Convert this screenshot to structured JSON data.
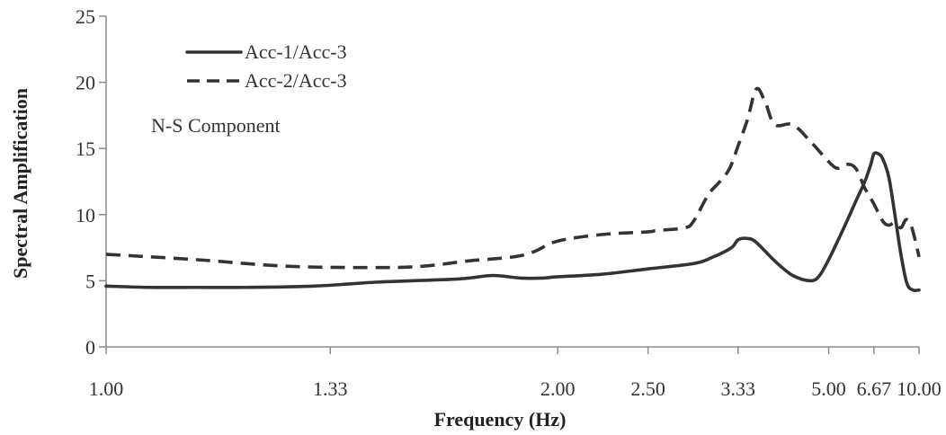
{
  "chart_data": {
    "type": "line",
    "xlabel": "Frequency (Hz)",
    "ylabel": "Spectral Amplification",
    "x_scale": "reciprocal",
    "xlim": [
      1.0,
      10.0
    ],
    "ylim": [
      0,
      25
    ],
    "xticks": [
      "1.00",
      "1.33",
      "2.00",
      "2.50",
      "3.33",
      "5.00",
      "6.67",
      "10.00"
    ],
    "yticks": [
      "0",
      "5",
      "10",
      "15",
      "20",
      "25"
    ],
    "grid": false,
    "legend_position": "top-left",
    "annotation": "N-S Component",
    "series": [
      {
        "name": "Acc-1/Acc-3",
        "style": "solid",
        "color": "#333333",
        "x": [
          1.0,
          1.05,
          1.11,
          1.18,
          1.3,
          1.43,
          1.61,
          1.67,
          1.75,
          1.85,
          1.93,
          2.0,
          2.22,
          2.5,
          2.86,
          3.05,
          3.25,
          3.33,
          3.45,
          3.57,
          3.85,
          4.17,
          4.55,
          4.76,
          5.0,
          5.26,
          5.56,
          5.88,
          6.25,
          6.52,
          6.67,
          6.9,
          7.14,
          7.5,
          7.89,
          8.33,
          8.82,
          9.38,
          10.0
        ],
        "y": [
          4.6,
          4.5,
          4.5,
          4.5,
          4.6,
          4.9,
          5.1,
          5.2,
          5.4,
          5.2,
          5.2,
          5.3,
          5.5,
          5.9,
          6.3,
          6.8,
          7.5,
          8.1,
          8.2,
          7.9,
          6.5,
          5.4,
          5.0,
          5.4,
          6.6,
          8.0,
          9.5,
          11.0,
          12.5,
          13.8,
          14.6,
          14.6,
          14.2,
          12.8,
          10.0,
          7.0,
          4.8,
          4.3,
          4.3
        ]
      },
      {
        "name": "Acc-2/Acc-3",
        "style": "dashed",
        "color": "#333333",
        "x": [
          1.0,
          1.11,
          1.25,
          1.43,
          1.54,
          1.67,
          1.82,
          1.9,
          2.0,
          2.22,
          2.5,
          2.56,
          2.78,
          2.86,
          3.0,
          3.12,
          3.23,
          3.33,
          3.45,
          3.57,
          3.7,
          3.85,
          4.17,
          4.55,
          5.0,
          5.26,
          5.56,
          5.88,
          6.25,
          6.67,
          7.14,
          7.5,
          7.89,
          8.33,
          8.7,
          9.09,
          9.52,
          10.0
        ],
        "y": [
          7.0,
          6.6,
          6.1,
          6.0,
          6.1,
          6.5,
          6.8,
          7.2,
          8.0,
          8.5,
          8.7,
          8.8,
          9.0,
          9.5,
          11.5,
          12.5,
          13.5,
          15.2,
          17.2,
          19.5,
          18.5,
          16.8,
          16.8,
          15.5,
          14.0,
          13.5,
          13.8,
          13.5,
          12.0,
          10.8,
          9.5,
          9.2,
          9.4,
          9.0,
          9.6,
          9.4,
          8.3,
          6.8
        ]
      }
    ]
  }
}
